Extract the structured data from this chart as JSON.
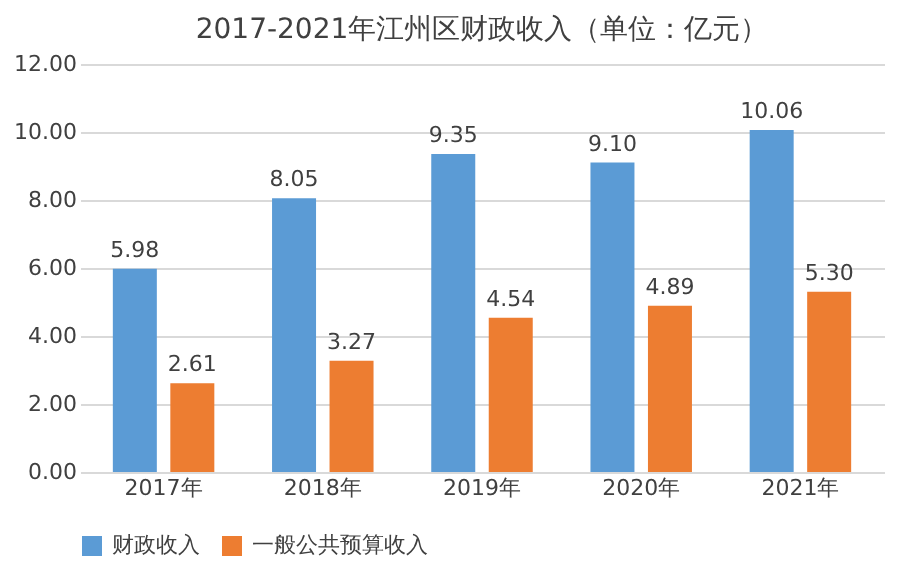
{
  "chart_data": {
    "type": "bar",
    "title": "2017-2021年江州区财政收入（单位：亿元）",
    "categories": [
      "2017年",
      "2018年",
      "2019年",
      "2020年",
      "2021年"
    ],
    "series": [
      {
        "name": "财政收入",
        "color": "#5b9bd5",
        "values": [
          5.98,
          8.05,
          9.35,
          9.1,
          10.06
        ],
        "value_labels": [
          "5.98",
          "8.05",
          "9.35",
          "9.10",
          "10.06"
        ]
      },
      {
        "name": "一般公共预算收入",
        "color": "#ed7d31",
        "values": [
          2.61,
          3.27,
          4.54,
          4.89,
          5.3
        ],
        "value_labels": [
          "2.61",
          "3.27",
          "4.54",
          "4.89",
          "5.30"
        ]
      }
    ],
    "ylim": [
      0,
      12
    ],
    "yticks": [
      {
        "value": 0,
        "label": "0.00"
      },
      {
        "value": 2,
        "label": "2.00"
      },
      {
        "value": 4,
        "label": "4.00"
      },
      {
        "value": 6,
        "label": "6.00"
      },
      {
        "value": 8,
        "label": "8.00"
      },
      {
        "value": 10,
        "label": "10.00"
      },
      {
        "value": 12,
        "label": "12.00"
      }
    ],
    "grid": "y",
    "legend": "bottom"
  }
}
